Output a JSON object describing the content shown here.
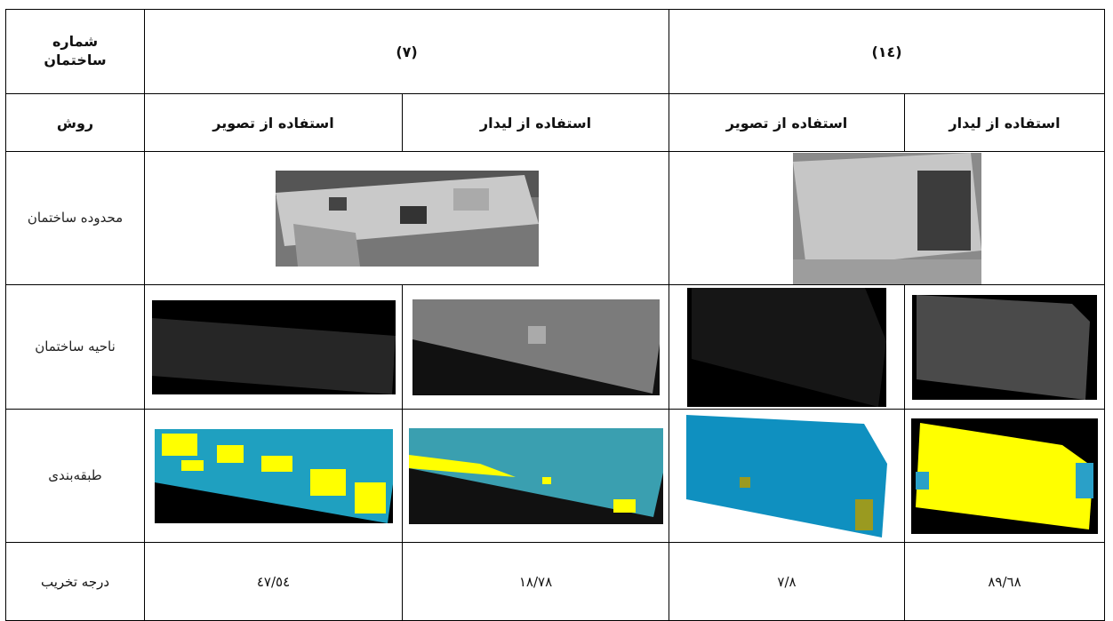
{
  "table": {
    "rows": [
      [
        "شماره ساختمان",
        "(٧)",
        "(١٤)"
      ],
      [
        "روش",
        "استفاده از تصویر",
        "استفاده از لیدار",
        "استفاده از تصویر",
        "استفاده از لیدار"
      ],
      [
        "محدوده ساختمان"
      ],
      [
        "ناحیه ساختمان"
      ],
      [
        "طبقه‌بندی"
      ],
      [
        "درجه تخریب",
        "٤٧/٥٤",
        "١٨/٧٨",
        "٧/٨",
        "٨٩/٦٨"
      ]
    ]
  }
}
